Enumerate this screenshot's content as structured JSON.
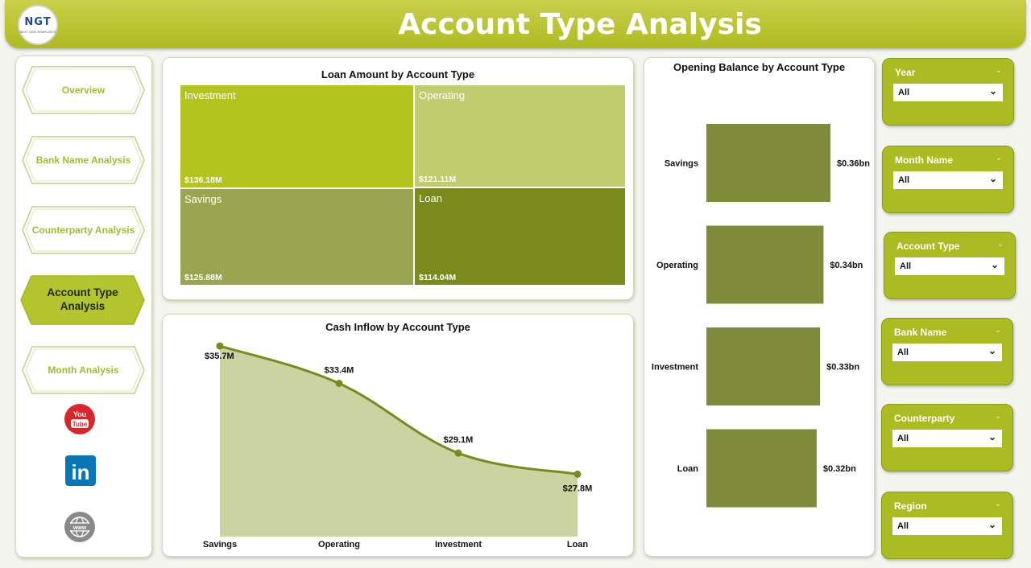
{
  "header": {
    "title": "Account Type Analysis",
    "logo_text": "NGT",
    "logo_subtext": "NEXT GEN TEMPLATES"
  },
  "nav": {
    "items": [
      {
        "label": "Overview",
        "active": false
      },
      {
        "label": "Bank Name Analysis",
        "active": false
      },
      {
        "label": "Counterparty Analysis",
        "active": false
      },
      {
        "label": "Account Type Analysis",
        "active": true
      },
      {
        "label": "Month Analysis",
        "active": false
      }
    ],
    "social": {
      "youtube_text_1": "You",
      "youtube_text_2": "Tube",
      "linkedin_text": "in",
      "web_text": "www"
    }
  },
  "colors": {
    "accent": "#abbc23",
    "investment": "#b3c51c",
    "operating": "#c0cc6d",
    "savings": "#9aa550",
    "loan": "#7a8a1b",
    "bar": "#808c3a",
    "area_line": "#7a8a1b",
    "area_fill": "#cbd3a2"
  },
  "chart_data": [
    {
      "type": "treemap",
      "title": "Loan Amount by Account Type",
      "items": [
        {
          "name": "Investment",
          "value": 136.18,
          "label": "$136.18M"
        },
        {
          "name": "Operating",
          "value": 121.11,
          "label": "$121.11M"
        },
        {
          "name": "Savings",
          "value": 125.88,
          "label": "$125.88M"
        },
        {
          "name": "Loan",
          "value": 114.04,
          "label": "$114.04M"
        }
      ]
    },
    {
      "type": "area",
      "title": "Cash Inflow by Account Type",
      "categories": [
        "Savings",
        "Operating",
        "Investment",
        "Loan"
      ],
      "values": [
        35.7,
        33.4,
        29.1,
        27.8
      ],
      "labels": [
        "$35.7M",
        "$33.4M",
        "$29.1M",
        "$27.8M"
      ],
      "ylim": [
        24.2,
        36.1
      ]
    },
    {
      "type": "bar",
      "orientation": "horizontal",
      "title": "Opening Balance by Account Type",
      "categories": [
        "Savings",
        "Operating",
        "Investment",
        "Loan"
      ],
      "values": [
        0.36,
        0.34,
        0.33,
        0.32
      ],
      "labels": [
        "$0.36bn",
        "$0.34bn",
        "$0.33bn",
        "$0.32bn"
      ],
      "xlim": [
        0,
        0.36
      ]
    }
  ],
  "slicers": [
    {
      "label": "Year",
      "value": "All"
    },
    {
      "label": "Month Name",
      "value": "All"
    },
    {
      "label": "Account Type",
      "value": "All"
    },
    {
      "label": "Bank Name",
      "value": "All"
    },
    {
      "label": "Counterparty",
      "value": "All"
    },
    {
      "label": "Region",
      "value": "All"
    }
  ]
}
